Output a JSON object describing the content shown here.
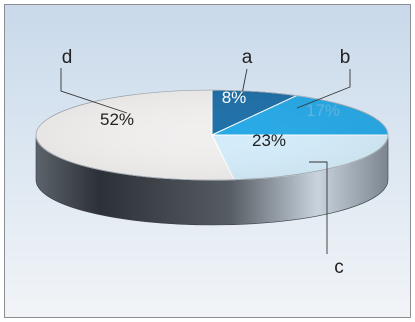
{
  "chart_data": {
    "type": "pie",
    "title": "",
    "slices": [
      {
        "label": "a",
        "value": 8,
        "value_label": "8%",
        "color": "#1f70a8",
        "text_color": "#ffffff"
      },
      {
        "label": "b",
        "value": 17,
        "value_label": "17%",
        "color": "#27a9e6",
        "text_color": "#5fb3df"
      },
      {
        "label": "c",
        "value": 23,
        "value_label": "23%",
        "color": "#d4ecfa",
        "text_color": "#222222"
      },
      {
        "label": "d",
        "value": 52,
        "value_label": "52%",
        "color": "#f1efee",
        "text_color": "#222222"
      }
    ],
    "style": "3d"
  }
}
